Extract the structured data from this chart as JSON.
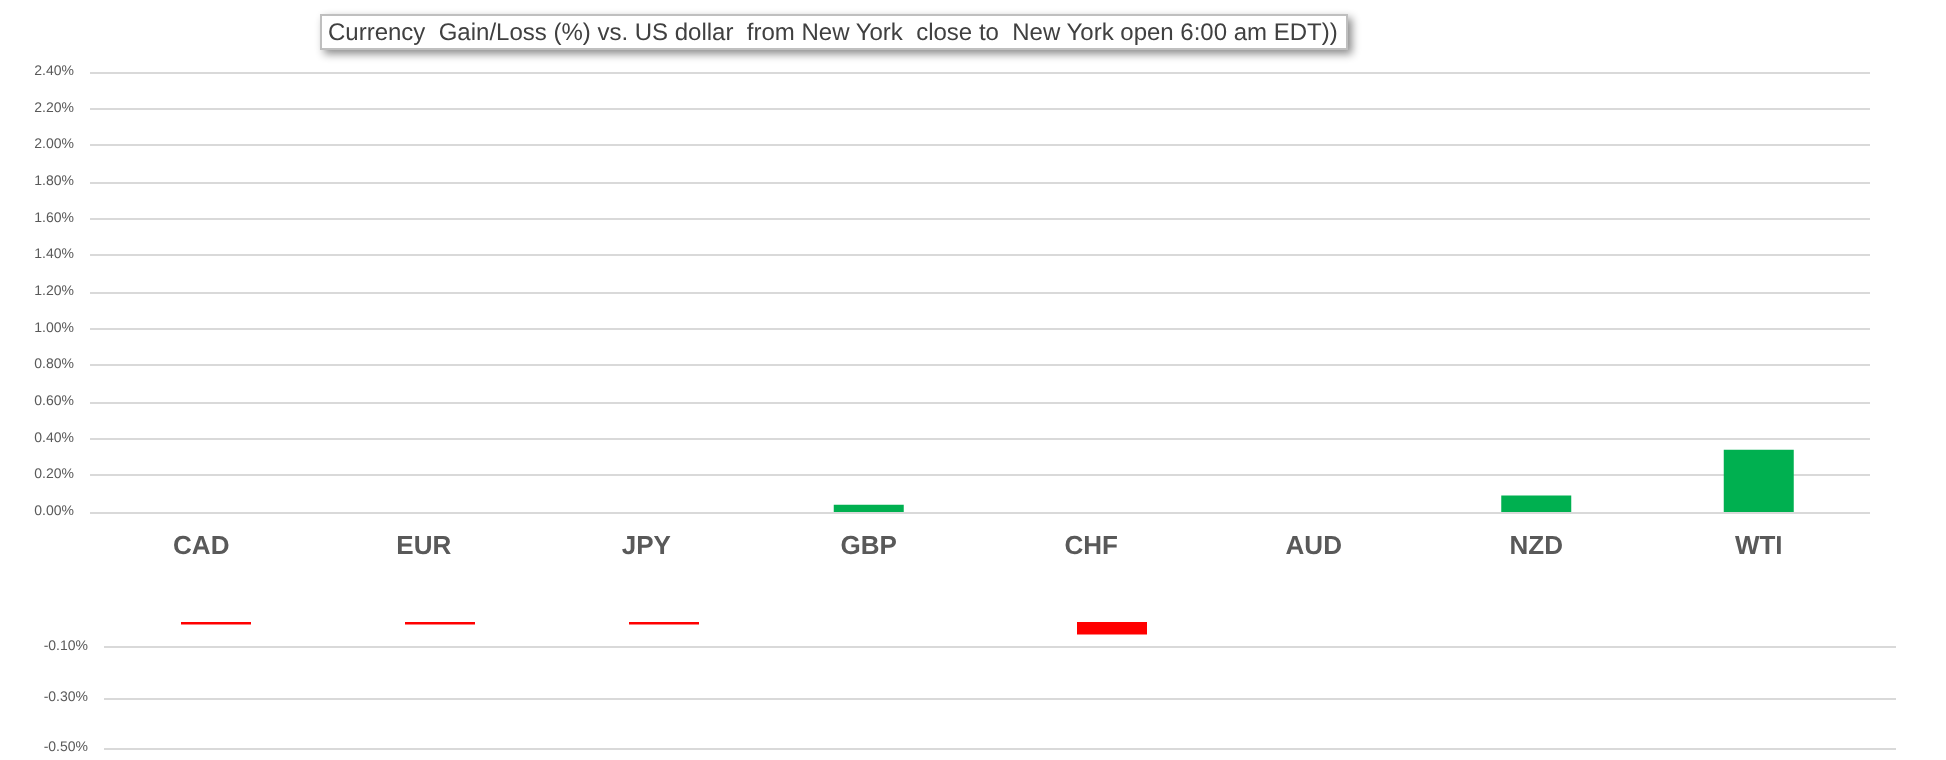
{
  "chart_data": [
    {
      "type": "bar",
      "title": "Currency  Gain/Loss (%) vs. US dollar  from New York  close to  New York open 6:00 am EDT))",
      "categories": [
        "CAD",
        "EUR",
        "JPY",
        "GBP",
        "CHF",
        "AUD",
        "NZD",
        "WTI"
      ],
      "series": [
        {
          "color": "#00b050",
          "values": [
            null,
            null,
            null,
            0.04,
            null,
            null,
            0.09,
            0.34
          ]
        }
      ],
      "ylim": [
        0,
        2.4
      ],
      "yticks": [
        {
          "value": 0,
          "label": "0.00%"
        },
        {
          "value": 0.2,
          "label": "0.20%"
        },
        {
          "value": 0.4,
          "label": "0.40%"
        },
        {
          "value": 0.6,
          "label": "0.60%"
        },
        {
          "value": 0.8,
          "label": "0.80%"
        },
        {
          "value": 1.0,
          "label": "1.00%"
        },
        {
          "value": 1.2,
          "label": "1.20%"
        },
        {
          "value": 1.4,
          "label": "1.40%"
        },
        {
          "value": 1.6,
          "label": "1.60%"
        },
        {
          "value": 1.8,
          "label": "1.80%"
        },
        {
          "value": 2.0,
          "label": "2.00%"
        },
        {
          "value": 2.2,
          "label": "2.20%"
        },
        {
          "value": 2.4,
          "label": "2.40%"
        }
      ],
      "grid": "y"
    },
    {
      "type": "bar",
      "categories": [
        null,
        null,
        null,
        null,
        null,
        null,
        null,
        null
      ],
      "series": [
        {
          "color": "#ff0000",
          "values": [
            -0.01,
            -0.01,
            -0.01,
            null,
            -0.05,
            null,
            null,
            null
          ]
        }
      ],
      "ylim": [
        -0.5,
        0
      ],
      "yticks": [
        {
          "value": -0.1,
          "label": "-0.10%"
        },
        {
          "value": -0.3,
          "label": "-0.30%"
        },
        {
          "value": -0.5,
          "label": "-0.50%"
        }
      ],
      "grid": "y",
      "tick_labels": "y"
    }
  ]
}
